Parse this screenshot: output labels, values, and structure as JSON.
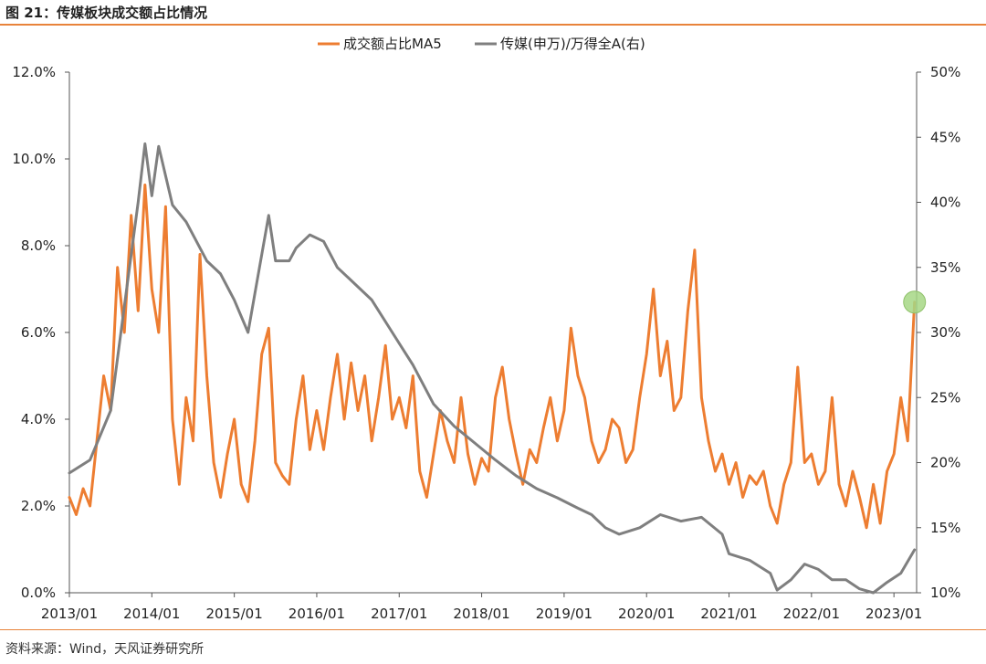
{
  "header": {
    "title": "图 21：传媒板块成交额占比情况"
  },
  "footer": {
    "source": "资料来源：Wind，天风证券研究所"
  },
  "colors": {
    "series_1": "#ed7d31",
    "series_2": "#7f7f7f",
    "accent_rule": "#e8833a",
    "highlight": "#a6d785"
  },
  "chart_data": {
    "type": "line",
    "title": "",
    "legend_position": "top-center",
    "grid": false,
    "x_tick_labels": [
      "2013/01",
      "2014/01",
      "2015/01",
      "2016/01",
      "2017/01",
      "2018/01",
      "2019/01",
      "2020/01",
      "2021/01",
      "2022/01",
      "2023/01"
    ],
    "y_left": {
      "range": [
        0,
        12
      ],
      "unit": "%",
      "tick_labels": [
        "0.0%",
        "2.0%",
        "4.0%",
        "6.0%",
        "8.0%",
        "10.0%",
        "12.0%"
      ]
    },
    "y_right": {
      "range": [
        10,
        50
      ],
      "unit": "%",
      "tick_labels": [
        "10%",
        "15%",
        "20%",
        "25%",
        "30%",
        "35%",
        "40%",
        "45%",
        "50%"
      ]
    },
    "series": [
      {
        "name": "成交额占比MA5",
        "axis": "left",
        "color": "#ed7d31",
        "points": [
          [
            "2013/01",
            2.2
          ],
          [
            "2013/02",
            1.8
          ],
          [
            "2013/03",
            2.4
          ],
          [
            "2013/04",
            2.0
          ],
          [
            "2013/05",
            3.5
          ],
          [
            "2013/06",
            5.0
          ],
          [
            "2013/07",
            4.2
          ],
          [
            "2013/08",
            7.5
          ],
          [
            "2013/09",
            6.0
          ],
          [
            "2013/10",
            8.7
          ],
          [
            "2013/11",
            6.5
          ],
          [
            "2013/12",
            9.4
          ],
          [
            "2014/01",
            7.0
          ],
          [
            "2014/02",
            6.0
          ],
          [
            "2014/03",
            8.9
          ],
          [
            "2014/04",
            4.0
          ],
          [
            "2014/05",
            2.5
          ],
          [
            "2014/06",
            4.5
          ],
          [
            "2014/07",
            3.5
          ],
          [
            "2014/08",
            7.8
          ],
          [
            "2014/09",
            5.0
          ],
          [
            "2014/10",
            3.0
          ],
          [
            "2014/11",
            2.2
          ],
          [
            "2014/12",
            3.2
          ],
          [
            "2015/01",
            4.0
          ],
          [
            "2015/02",
            2.5
          ],
          [
            "2015/03",
            2.1
          ],
          [
            "2015/04",
            3.5
          ],
          [
            "2015/05",
            5.5
          ],
          [
            "2015/06",
            6.1
          ],
          [
            "2015/07",
            3.0
          ],
          [
            "2015/08",
            2.7
          ],
          [
            "2015/09",
            2.5
          ],
          [
            "2015/10",
            4.0
          ],
          [
            "2015/11",
            5.0
          ],
          [
            "2015/12",
            3.3
          ],
          [
            "2016/01",
            4.2
          ],
          [
            "2016/02",
            3.3
          ],
          [
            "2016/03",
            4.5
          ],
          [
            "2016/04",
            5.5
          ],
          [
            "2016/05",
            4.0
          ],
          [
            "2016/06",
            5.3
          ],
          [
            "2016/07",
            4.2
          ],
          [
            "2016/08",
            5.0
          ],
          [
            "2016/09",
            3.5
          ],
          [
            "2016/10",
            4.5
          ],
          [
            "2016/11",
            5.7
          ],
          [
            "2016/12",
            4.0
          ],
          [
            "2017/01",
            4.5
          ],
          [
            "2017/02",
            3.8
          ],
          [
            "2017/03",
            5.0
          ],
          [
            "2017/04",
            2.8
          ],
          [
            "2017/05",
            2.2
          ],
          [
            "2017/06",
            3.2
          ],
          [
            "2017/07",
            4.2
          ],
          [
            "2017/08",
            3.5
          ],
          [
            "2017/09",
            3.0
          ],
          [
            "2017/10",
            4.5
          ],
          [
            "2017/11",
            3.2
          ],
          [
            "2017/12",
            2.5
          ],
          [
            "2018/01",
            3.1
          ],
          [
            "2018/02",
            2.8
          ],
          [
            "2018/03",
            4.5
          ],
          [
            "2018/04",
            5.2
          ],
          [
            "2018/05",
            4.0
          ],
          [
            "2018/06",
            3.2
          ],
          [
            "2018/07",
            2.5
          ],
          [
            "2018/08",
            3.3
          ],
          [
            "2018/09",
            3.0
          ],
          [
            "2018/10",
            3.8
          ],
          [
            "2018/11",
            4.5
          ],
          [
            "2018/12",
            3.5
          ],
          [
            "2019/01",
            4.2
          ],
          [
            "2019/02",
            6.1
          ],
          [
            "2019/03",
            5.0
          ],
          [
            "2019/04",
            4.5
          ],
          [
            "2019/05",
            3.5
          ],
          [
            "2019/06",
            3.0
          ],
          [
            "2019/07",
            3.3
          ],
          [
            "2019/08",
            4.0
          ],
          [
            "2019/09",
            3.8
          ],
          [
            "2019/10",
            3.0
          ],
          [
            "2019/11",
            3.3
          ],
          [
            "2019/12",
            4.5
          ],
          [
            "2020/01",
            5.5
          ],
          [
            "2020/02",
            7.0
          ],
          [
            "2020/03",
            5.0
          ],
          [
            "2020/04",
            5.8
          ],
          [
            "2020/05",
            4.2
          ],
          [
            "2020/06",
            4.5
          ],
          [
            "2020/07",
            6.5
          ],
          [
            "2020/08",
            7.9
          ],
          [
            "2020/09",
            4.5
          ],
          [
            "2020/10",
            3.5
          ],
          [
            "2020/11",
            2.8
          ],
          [
            "2020/12",
            3.2
          ],
          [
            "2021/01",
            2.5
          ],
          [
            "2021/02",
            3.0
          ],
          [
            "2021/03",
            2.2
          ],
          [
            "2021/04",
            2.7
          ],
          [
            "2021/05",
            2.5
          ],
          [
            "2021/06",
            2.8
          ],
          [
            "2021/07",
            2.0
          ],
          [
            "2021/08",
            1.6
          ],
          [
            "2021/09",
            2.5
          ],
          [
            "2021/10",
            3.0
          ],
          [
            "2021/11",
            5.2
          ],
          [
            "2021/12",
            3.0
          ],
          [
            "2022/01",
            3.2
          ],
          [
            "2022/02",
            2.5
          ],
          [
            "2022/03",
            2.8
          ],
          [
            "2022/04",
            4.5
          ],
          [
            "2022/05",
            2.5
          ],
          [
            "2022/06",
            2.0
          ],
          [
            "2022/07",
            2.8
          ],
          [
            "2022/08",
            2.2
          ],
          [
            "2022/09",
            1.5
          ],
          [
            "2022/10",
            2.5
          ],
          [
            "2022/11",
            1.6
          ],
          [
            "2022/12",
            2.8
          ],
          [
            "2023/01",
            3.2
          ],
          [
            "2023/02",
            4.5
          ],
          [
            "2023/03",
            3.5
          ],
          [
            "2023/04",
            6.7
          ]
        ]
      },
      {
        "name": "传媒(申万)/万得全A(右)",
        "axis": "right",
        "color": "#7f7f7f",
        "points": [
          [
            "2013/01",
            19.2
          ],
          [
            "2013/04",
            20.2
          ],
          [
            "2013/07",
            24.0
          ],
          [
            "2013/09",
            32.0
          ],
          [
            "2013/11",
            40.0
          ],
          [
            "2013/12",
            44.5
          ],
          [
            "2014/01",
            40.5
          ],
          [
            "2014/02",
            44.3
          ],
          [
            "2014/04",
            39.8
          ],
          [
            "2014/06",
            38.5
          ],
          [
            "2014/09",
            35.5
          ],
          [
            "2014/11",
            34.5
          ],
          [
            "2015/01",
            32.5
          ],
          [
            "2015/03",
            30.0
          ],
          [
            "2015/04",
            33.0
          ],
          [
            "2015/06",
            39.0
          ],
          [
            "2015/07",
            35.5
          ],
          [
            "2015/09",
            35.5
          ],
          [
            "2015/10",
            36.5
          ],
          [
            "2015/12",
            37.5
          ],
          [
            "2016/02",
            37.0
          ],
          [
            "2016/04",
            35.0
          ],
          [
            "2016/06",
            34.0
          ],
          [
            "2016/09",
            32.5
          ],
          [
            "2016/12",
            30.0
          ],
          [
            "2017/03",
            27.5
          ],
          [
            "2017/06",
            24.5
          ],
          [
            "2017/09",
            22.8
          ],
          [
            "2017/12",
            21.5
          ],
          [
            "2018/03",
            20.2
          ],
          [
            "2018/06",
            19.0
          ],
          [
            "2018/09",
            18.0
          ],
          [
            "2018/12",
            17.3
          ],
          [
            "2019/03",
            16.5
          ],
          [
            "2019/05",
            16.0
          ],
          [
            "2019/07",
            15.0
          ],
          [
            "2019/09",
            14.5
          ],
          [
            "2019/12",
            15.0
          ],
          [
            "2020/03",
            16.0
          ],
          [
            "2020/06",
            15.5
          ],
          [
            "2020/09",
            15.8
          ],
          [
            "2020/12",
            14.5
          ],
          [
            "2021/01",
            13.0
          ],
          [
            "2021/04",
            12.5
          ],
          [
            "2021/07",
            11.5
          ],
          [
            "2021/08",
            10.2
          ],
          [
            "2021/10",
            11.0
          ],
          [
            "2021/12",
            12.2
          ],
          [
            "2022/02",
            11.8
          ],
          [
            "2022/04",
            11.0
          ],
          [
            "2022/06",
            11.0
          ],
          [
            "2022/08",
            10.3
          ],
          [
            "2022/10",
            10.0
          ],
          [
            "2022/12",
            10.8
          ],
          [
            "2023/02",
            11.5
          ],
          [
            "2023/04",
            13.3
          ]
        ]
      }
    ]
  }
}
